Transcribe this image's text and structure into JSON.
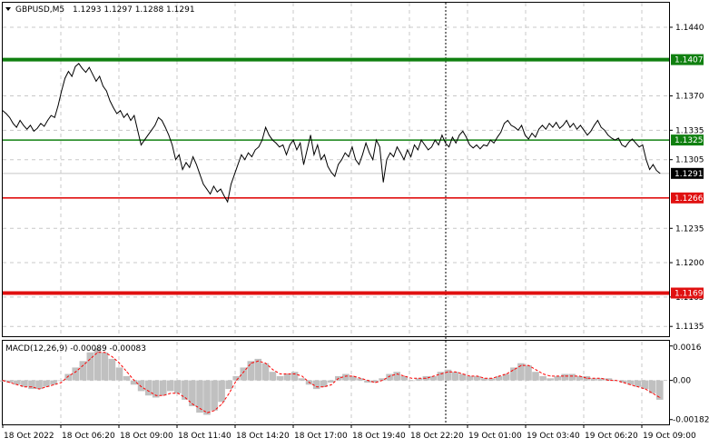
{
  "header": {
    "symbol": "GBPUSD,M5",
    "ohlc": "1.1293 1.1297 1.1288 1.1291",
    "menu_arrow": "triangle-down-icon"
  },
  "macd_header": "MACD(12,26,9) -0.00089 -0.00083",
  "colors": {
    "resistance": "#108010",
    "support": "#e01010",
    "price_line": "#000000",
    "histogram": "#c0c0c0",
    "signal_line": "#ff0000",
    "grid": "#c8c8c8",
    "current_price_bg": "#000000"
  },
  "chart_data": [
    {
      "type": "line",
      "title": "GBPUSD,M5",
      "ylim": [
        1.1125,
        1.1465
      ],
      "y_ticks": [
        "1.1440",
        "1.1370",
        "1.1335",
        "1.1305",
        "1.1235",
        "1.1200",
        "1.1165",
        "1.1135"
      ],
      "levels": [
        {
          "label": "1.1407",
          "value": 1.1407,
          "color": "green",
          "weight": "thick"
        },
        {
          "label": "1.1325",
          "value": 1.1325,
          "color": "green",
          "weight": "thin"
        },
        {
          "label": "1.1266",
          "value": 1.1266,
          "color": "red",
          "weight": "thin"
        },
        {
          "label": "1.1169",
          "value": 1.1169,
          "color": "red",
          "weight": "thick"
        }
      ],
      "current_price": "1.1291",
      "x_ticks": [
        "18 Oct 2022",
        "18 Oct 06:20",
        "18 Oct 09:00",
        "18 Oct 11:40",
        "18 Oct 14:20",
        "18 Oct 17:00",
        "18 Oct 19:40",
        "18 Oct 22:20",
        "19 Oct 01:00",
        "19 Oct 03:40",
        "19 Oct 06:20",
        "19 Oct 09:00"
      ],
      "series": [
        {
          "values": [
            1.1355,
            1.1352,
            1.1348,
            1.1342,
            1.1338,
            1.1345,
            1.134,
            1.1336,
            1.134,
            1.1334,
            1.1337,
            1.1342,
            1.1339,
            1.1345,
            1.135,
            1.1348,
            1.136,
            1.1375,
            1.1388,
            1.1395,
            1.139,
            1.14,
            1.1403,
            1.1398,
            1.1394,
            1.1399,
            1.1392,
            1.1385,
            1.139,
            1.138,
            1.1375,
            1.1365,
            1.1358,
            1.1352,
            1.1355,
            1.1348,
            1.1352,
            1.1345,
            1.135,
            1.1335,
            1.132,
            1.1325,
            1.133,
            1.1335,
            1.134,
            1.1348,
            1.1345,
            1.1338,
            1.133,
            1.132,
            1.1305,
            1.131,
            1.1295,
            1.1302,
            1.1297,
            1.1308,
            1.13,
            1.129,
            1.128,
            1.1275,
            1.127,
            1.1278,
            1.1272,
            1.1275,
            1.1268,
            1.1262,
            1.128,
            1.129,
            1.13,
            1.131,
            1.1305,
            1.1312,
            1.1308,
            1.1315,
            1.1318,
            1.1325,
            1.1338,
            1.133,
            1.1325,
            1.1322,
            1.1318,
            1.132,
            1.131,
            1.132,
            1.1325,
            1.1315,
            1.1322,
            1.13,
            1.1315,
            1.133,
            1.131,
            1.132,
            1.1305,
            1.131,
            1.1298,
            1.1292,
            1.1288,
            1.13,
            1.1305,
            1.1312,
            1.1308,
            1.1318,
            1.1305,
            1.13,
            1.131,
            1.1322,
            1.1312,
            1.1305,
            1.1325,
            1.1318,
            1.1282,
            1.1305,
            1.1312,
            1.1308,
            1.1318,
            1.1312,
            1.1305,
            1.1315,
            1.1308,
            1.132,
            1.1315,
            1.1325,
            1.132,
            1.1315,
            1.1318,
            1.1325,
            1.132,
            1.133,
            1.1322,
            1.1318,
            1.1328,
            1.1322,
            1.133,
            1.1334,
            1.1328,
            1.132,
            1.1317,
            1.132,
            1.1316,
            1.132,
            1.1319,
            1.1325,
            1.1322,
            1.1328,
            1.1333,
            1.1342,
            1.1345,
            1.134,
            1.1338,
            1.1335,
            1.134,
            1.133,
            1.1326,
            1.1332,
            1.1328,
            1.1336,
            1.134,
            1.1336,
            1.1342,
            1.1338,
            1.1343,
            1.1337,
            1.134,
            1.1345,
            1.1338,
            1.1342,
            1.1336,
            1.134,
            1.1335,
            1.133,
            1.1334,
            1.134,
            1.1345,
            1.1338,
            1.1335,
            1.133,
            1.1327,
            1.1325,
            1.1327,
            1.132,
            1.1318,
            1.1323,
            1.1326,
            1.1322,
            1.1318,
            1.132,
            1.1305,
            1.1295,
            1.13,
            1.1294,
            1.1291
          ]
        }
      ]
    },
    {
      "type": "bar",
      "title": "MACD(12,26,9) -0.00089 -0.00083",
      "ylim": [
        -0.002,
        0.0018
      ],
      "y_ticks": [
        "0.0016",
        "0.00",
        "-0.00182"
      ],
      "series": [
        {
          "name": "MACD",
          "values": [
            -5e-05,
            -0.0001,
            -0.0002,
            -0.0003,
            -0.0004,
            -0.0004,
            -0.0003,
            -0.0002,
            0.0,
            0.0003,
            0.0006,
            0.0009,
            0.0013,
            0.0015,
            0.0013,
            0.001,
            0.0006,
            0.0002,
            -0.0002,
            -0.0005,
            -0.0007,
            -0.0008,
            -0.0007,
            -0.0005,
            -0.0006,
            -0.0009,
            -0.0012,
            -0.0015,
            -0.0016,
            -0.0014,
            -0.001,
            -0.0004,
            0.0002,
            0.0006,
            0.0009,
            0.001,
            0.0008,
            0.0004,
            0.0002,
            0.0003,
            0.0004,
            0.0001,
            -0.0002,
            -0.0004,
            -0.0003,
            -0.0001,
            0.0002,
            0.0003,
            0.0002,
            0.0001,
            -0.0001,
            -0.0001,
            0.0001,
            0.0003,
            0.0004,
            0.0002,
            0.0,
            0.0001,
            0.0002,
            0.0002,
            0.0004,
            0.0005,
            0.0004,
            0.0003,
            0.0002,
            0.0002,
            0.0001,
            0.0001,
            0.0002,
            0.0003,
            0.0006,
            0.0008,
            0.0007,
            0.0004,
            0.0002,
            0.0001,
            0.0002,
            0.0003,
            0.0003,
            0.0002,
            0.0002,
            0.0001,
            0.0001,
            0.0001,
            0.0,
            -0.0001,
            -0.0002,
            -0.0003,
            -0.0004,
            -0.0006,
            -0.0009
          ]
        },
        {
          "name": "Signal",
          "values": [
            0.0,
            -0.0001,
            -0.0002,
            -0.0003,
            -0.0003,
            -0.0004,
            -0.0003,
            -0.0002,
            -0.0001,
            0.0002,
            0.0004,
            0.0007,
            0.001,
            0.0013,
            0.0013,
            0.0011,
            0.0008,
            0.0004,
            0.0,
            -0.0003,
            -0.0005,
            -0.0007,
            -0.0007,
            -0.0006,
            -0.0006,
            -0.0008,
            -0.0011,
            -0.0013,
            -0.0015,
            -0.0014,
            -0.0011,
            -0.0006,
            0.0,
            0.0004,
            0.0008,
            0.0009,
            0.0008,
            0.0005,
            0.0003,
            0.0003,
            0.0003,
            0.0002,
            -0.0001,
            -0.0003,
            -0.0003,
            -0.0002,
            0.0001,
            0.0002,
            0.0002,
            0.0001,
            0.0,
            -0.0001,
            0.0,
            0.0002,
            0.0003,
            0.0002,
            0.0001,
            0.0001,
            0.0001,
            0.0002,
            0.0003,
            0.0004,
            0.0004,
            0.0003,
            0.0002,
            0.0002,
            0.0001,
            0.0001,
            0.0002,
            0.0003,
            0.0005,
            0.0007,
            0.0007,
            0.0005,
            0.0003,
            0.0002,
            0.0002,
            0.0002,
            0.0002,
            0.0002,
            0.0001,
            0.0001,
            0.0001,
            0.0,
            0.0,
            -0.0001,
            -0.0002,
            -0.0003,
            -0.0004,
            -0.0006,
            -0.0008
          ]
        }
      ]
    }
  ]
}
